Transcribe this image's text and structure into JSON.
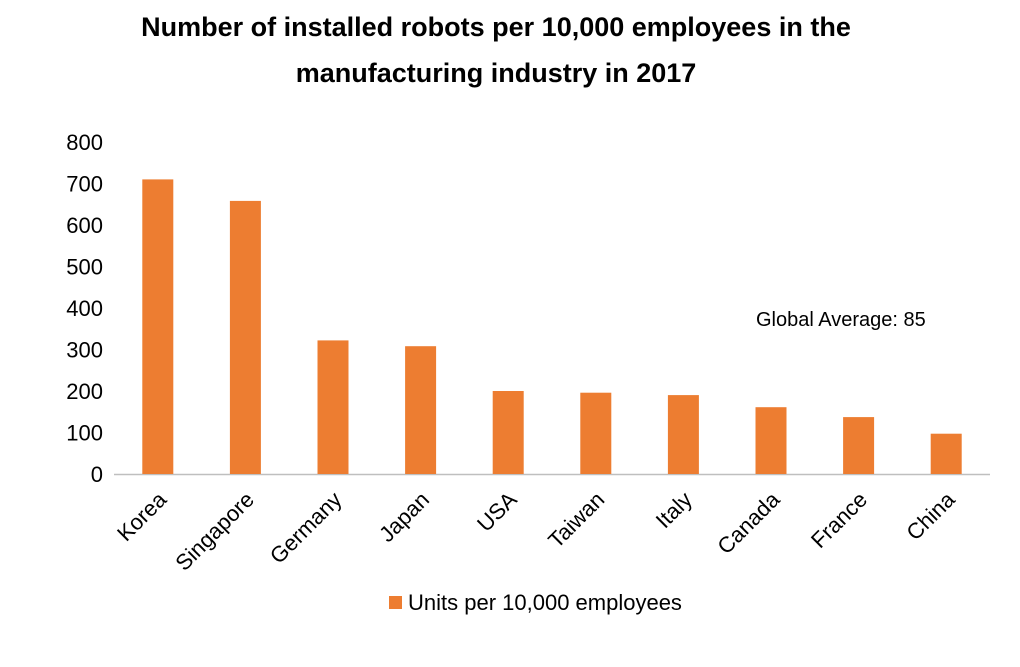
{
  "chart_data": {
    "type": "bar",
    "title_lines": [
      "Number of installed robots per 10,000 employees in the",
      "manufacturing industry in 2017"
    ],
    "categories": [
      "Korea",
      "Singapore",
      "Germany",
      "Japan",
      "USA",
      "Taiwan",
      "Italy",
      "Canada",
      "France",
      "China"
    ],
    "series": [
      {
        "name": "Units per 10,000 employees",
        "values": [
          710,
          658,
          322,
          308,
          200,
          196,
          190,
          161,
          137,
          97
        ],
        "color": "#ED7D31"
      }
    ],
    "yticks": [
      "0",
      "100",
      "200",
      "300",
      "400",
      "500",
      "600",
      "700",
      "800"
    ],
    "ylim": [
      0,
      800
    ],
    "annotation": "Global Average: 85",
    "grid": false,
    "legend_position": "bottom"
  }
}
